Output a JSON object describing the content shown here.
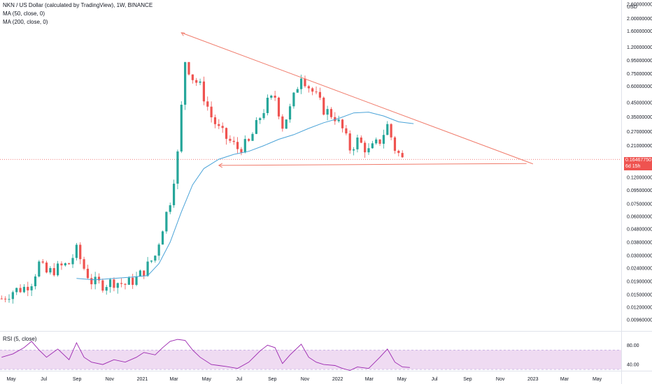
{
  "header": {
    "title": "NKN / US Dollar (calculated by TradingView), 1W, BINANCE",
    "ma50": "MA (50, close, 0)",
    "ma200": "MA (200, close, 0)"
  },
  "rsi_title": "RSI (5, close)",
  "price_tag": {
    "price": "0.16467750",
    "countdown": "6d 15h"
  },
  "colors": {
    "up": "#26a69a",
    "down": "#ef5350",
    "ma": "#4aa3d8",
    "trend": "#f07b6b",
    "rsi": "#9c27b0",
    "rsi_band": "#e1bee7"
  },
  "chart_data": {
    "type": "candlestick",
    "title": "NKN / US Dollar (calculated by TradingView), 1W, BINANCE",
    "y_unit": "USD",
    "y_scale": "log",
    "ylim": [
      0.0085,
      2.7
    ],
    "y_ticks": [
      "2.60000000",
      "2.00000000",
      "1.60000000",
      "1.20000000",
      "0.95000000",
      "0.75000000",
      "0.60000000",
      "0.45000000",
      "0.35000000",
      "0.27000000",
      "0.21000000",
      "0.16467750",
      "0.12000000",
      "0.09500000",
      "0.07500000",
      "0.06000000",
      "0.04800000",
      "0.03800000",
      "0.03000000",
      "0.02400000",
      "0.01900000",
      "0.01500000",
      "0.01200000",
      "0.00960000"
    ],
    "x_ticks": [
      "May",
      "Jul",
      "Sep",
      "Nov",
      "2021",
      "Mar",
      "May",
      "Jul",
      "Sep",
      "Nov",
      "2022",
      "Mar",
      "May",
      "Jul",
      "Sep",
      "Nov",
      "2023",
      "Mar",
      "May"
    ],
    "x_tick_dates": [
      "2020-05-01",
      "2020-07-01",
      "2020-09-01",
      "2020-11-01",
      "2021-01-01",
      "2021-03-01",
      "2021-05-01",
      "2021-07-01",
      "2021-09-01",
      "2021-11-01",
      "2022-01-01",
      "2022-03-01",
      "2022-05-01",
      "2022-07-01",
      "2022-09-01",
      "2022-11-01",
      "2023-01-01",
      "2023-03-01",
      "2023-05-01"
    ],
    "xlim": [
      "2020-04-10",
      "2023-06-15"
    ],
    "close_path": [
      [
        "2020-04-13",
        0.014
      ],
      [
        "2020-05-04",
        0.016
      ],
      [
        "2020-05-25",
        0.017
      ],
      [
        "2020-06-08",
        0.019
      ],
      [
        "2020-06-22",
        0.026
      ],
      [
        "2020-07-06",
        0.022
      ],
      [
        "2020-07-27",
        0.024
      ],
      [
        "2020-08-17",
        0.026
      ],
      [
        "2020-08-31",
        0.033
      ],
      [
        "2020-09-14",
        0.024
      ],
      [
        "2020-09-28",
        0.019
      ],
      [
        "2020-10-19",
        0.018
      ],
      [
        "2020-11-09",
        0.019
      ],
      [
        "2020-11-30",
        0.018
      ],
      [
        "2020-12-21",
        0.02
      ],
      [
        "2021-01-04",
        0.023
      ],
      [
        "2021-01-25",
        0.03
      ],
      [
        "2021-02-08",
        0.05
      ],
      [
        "2021-02-22",
        0.08
      ],
      [
        "2021-03-08",
        0.18
      ],
      [
        "2021-03-22",
        0.95
      ],
      [
        "2021-04-05",
        0.7
      ],
      [
        "2021-04-19",
        0.6
      ],
      [
        "2021-05-10",
        0.35
      ],
      [
        "2021-05-24",
        0.28
      ],
      [
        "2021-06-07",
        0.24
      ],
      [
        "2021-06-28",
        0.2
      ],
      [
        "2021-07-19",
        0.22
      ],
      [
        "2021-08-09",
        0.35
      ],
      [
        "2021-08-23",
        0.45
      ],
      [
        "2021-09-06",
        0.5
      ],
      [
        "2021-09-20",
        0.3
      ],
      [
        "2021-10-04",
        0.4
      ],
      [
        "2021-10-25",
        0.75
      ],
      [
        "2021-11-08",
        0.6
      ],
      [
        "2021-11-22",
        0.5
      ],
      [
        "2021-12-06",
        0.4
      ],
      [
        "2021-12-27",
        0.35
      ],
      [
        "2022-01-10",
        0.28
      ],
      [
        "2022-01-24",
        0.2
      ],
      [
        "2022-02-07",
        0.23
      ],
      [
        "2022-02-28",
        0.19
      ],
      [
        "2022-03-21",
        0.23
      ],
      [
        "2022-04-04",
        0.3
      ],
      [
        "2022-04-18",
        0.2
      ],
      [
        "2022-05-02",
        0.165
      ]
    ],
    "series": [
      {
        "name": "MA (200, close, 0)",
        "type": "line",
        "points": [
          [
            "2020-08-31",
            0.02
          ],
          [
            "2020-10-05",
            0.0195
          ],
          [
            "2020-11-09",
            0.02
          ],
          [
            "2020-12-14",
            0.0205
          ],
          [
            "2021-01-11",
            0.021
          ],
          [
            "2021-02-01",
            0.026
          ],
          [
            "2021-02-22",
            0.038
          ],
          [
            "2021-03-15",
            0.065
          ],
          [
            "2021-04-05",
            0.105
          ],
          [
            "2021-04-26",
            0.14
          ],
          [
            "2021-05-24",
            0.165
          ],
          [
            "2021-06-21",
            0.18
          ],
          [
            "2021-07-19",
            0.19
          ],
          [
            "2021-08-16",
            0.21
          ],
          [
            "2021-09-13",
            0.235
          ],
          [
            "2021-10-11",
            0.255
          ],
          [
            "2021-11-08",
            0.285
          ],
          [
            "2021-12-06",
            0.315
          ],
          [
            "2022-01-03",
            0.34
          ],
          [
            "2022-01-31",
            0.375
          ],
          [
            "2022-02-28",
            0.38
          ],
          [
            "2022-03-28",
            0.355
          ],
          [
            "2022-04-25",
            0.32
          ],
          [
            "2022-05-23",
            0.31
          ]
        ]
      }
    ],
    "annotations": [
      {
        "type": "trendline",
        "from": [
          "2021-03-15",
          1.55
        ],
        "to": [
          "2023-01-01",
          0.152
        ]
      },
      {
        "type": "horizontal_line",
        "from": [
          "2021-05-24",
          0.148
        ],
        "to": [
          "2022-12-20",
          0.153
        ]
      }
    ],
    "last_price": "0.16467750",
    "rsi": {
      "name": "RSI (5, close)",
      "ylim": [
        20,
        95
      ],
      "ticks": [
        "80.00",
        "40.00"
      ],
      "band": [
        30,
        70
      ],
      "points": [
        [
          "2020-04-13",
          55
        ],
        [
          "2020-05-04",
          62
        ],
        [
          "2020-05-25",
          75
        ],
        [
          "2020-06-08",
          88
        ],
        [
          "2020-06-22",
          70
        ],
        [
          "2020-07-06",
          55
        ],
        [
          "2020-07-27",
          72
        ],
        [
          "2020-08-17",
          50
        ],
        [
          "2020-08-31",
          85
        ],
        [
          "2020-09-14",
          55
        ],
        [
          "2020-09-28",
          45
        ],
        [
          "2020-10-19",
          40
        ],
        [
          "2020-11-09",
          50
        ],
        [
          "2020-11-30",
          45
        ],
        [
          "2020-12-21",
          55
        ],
        [
          "2021-01-04",
          65
        ],
        [
          "2021-01-25",
          60
        ],
        [
          "2021-02-08",
          75
        ],
        [
          "2021-02-22",
          88
        ],
        [
          "2021-03-08",
          92
        ],
        [
          "2021-03-22",
          90
        ],
        [
          "2021-04-05",
          70
        ],
        [
          "2021-04-19",
          55
        ],
        [
          "2021-05-10",
          40
        ],
        [
          "2021-05-24",
          38
        ],
        [
          "2021-06-07",
          36
        ],
        [
          "2021-06-28",
          32
        ],
        [
          "2021-07-19",
          45
        ],
        [
          "2021-08-09",
          68
        ],
        [
          "2021-08-23",
          80
        ],
        [
          "2021-09-06",
          75
        ],
        [
          "2021-09-20",
          42
        ],
        [
          "2021-10-04",
          60
        ],
        [
          "2021-10-25",
          82
        ],
        [
          "2021-11-08",
          55
        ],
        [
          "2021-11-22",
          45
        ],
        [
          "2021-12-06",
          40
        ],
        [
          "2021-12-27",
          38
        ],
        [
          "2022-01-10",
          32
        ],
        [
          "2022-01-24",
          28
        ],
        [
          "2022-02-07",
          35
        ],
        [
          "2022-02-28",
          32
        ],
        [
          "2022-03-21",
          55
        ],
        [
          "2022-04-04",
          72
        ],
        [
          "2022-04-18",
          45
        ],
        [
          "2022-05-02",
          35
        ],
        [
          "2022-05-16",
          34
        ]
      ]
    }
  }
}
